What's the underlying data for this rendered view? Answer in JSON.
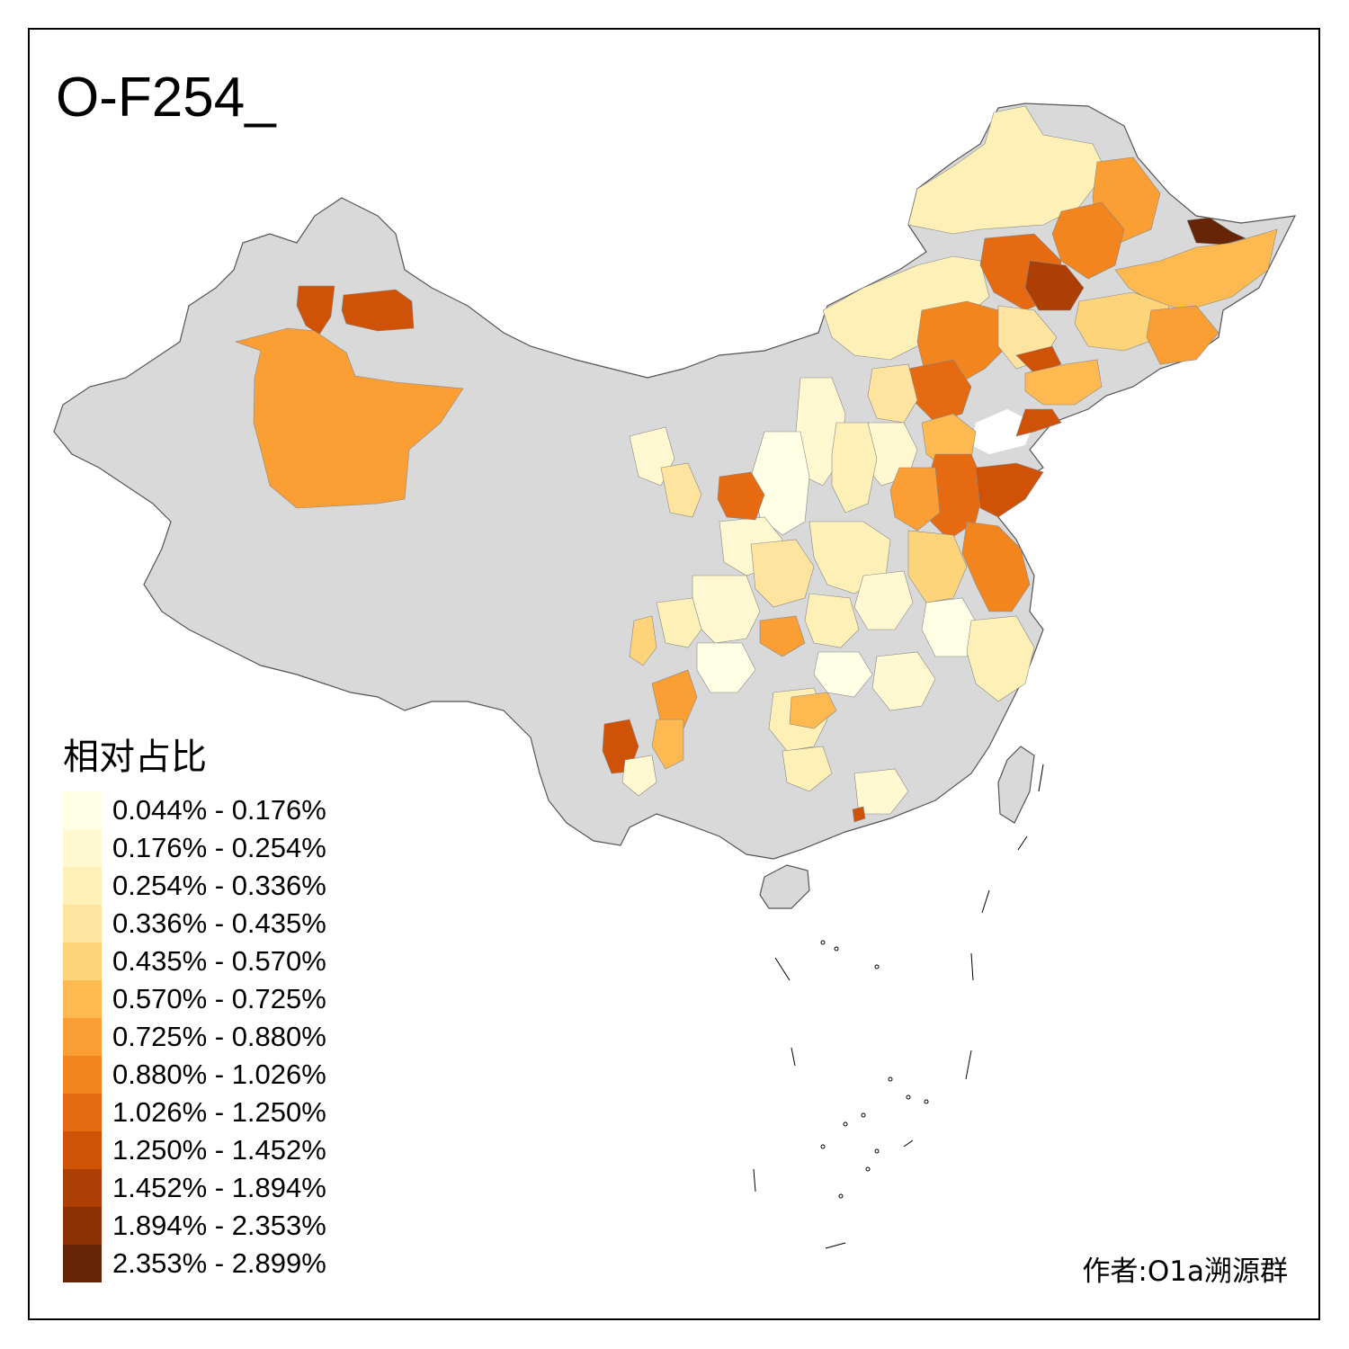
{
  "title": "O-F254_",
  "legend": {
    "title": "相对占比",
    "items": [
      {
        "label": "0.044% - 0.176%",
        "color": "#FFFFE5"
      },
      {
        "label": "0.176% - 0.254%",
        "color": "#FFF8D0"
      },
      {
        "label": "0.254% - 0.336%",
        "color": "#FFF0B8"
      },
      {
        "label": "0.336% - 0.435%",
        "color": "#FEE49E"
      },
      {
        "label": "0.435% - 0.570%",
        "color": "#FED47A"
      },
      {
        "label": "0.570% - 0.725%",
        "color": "#FEB950"
      },
      {
        "label": "0.725% - 0.880%",
        "color": "#FB9F34"
      },
      {
        "label": "0.880% - 1.026%",
        "color": "#F3851F"
      },
      {
        "label": "1.026% - 1.250%",
        "color": "#E56A12"
      },
      {
        "label": "1.250% - 1.452%",
        "color": "#CF5207"
      },
      {
        "label": "1.452% - 1.894%",
        "color": "#AE3F04"
      },
      {
        "label": "1.894% - 2.353%",
        "color": "#8C3104"
      },
      {
        "label": "2.353% - 2.899%",
        "color": "#662506"
      }
    ]
  },
  "credit": "作者:O1a溯源群",
  "colors": {
    "no_data": "#D9D9D9",
    "border": "#555555",
    "frame": "#000000"
  }
}
